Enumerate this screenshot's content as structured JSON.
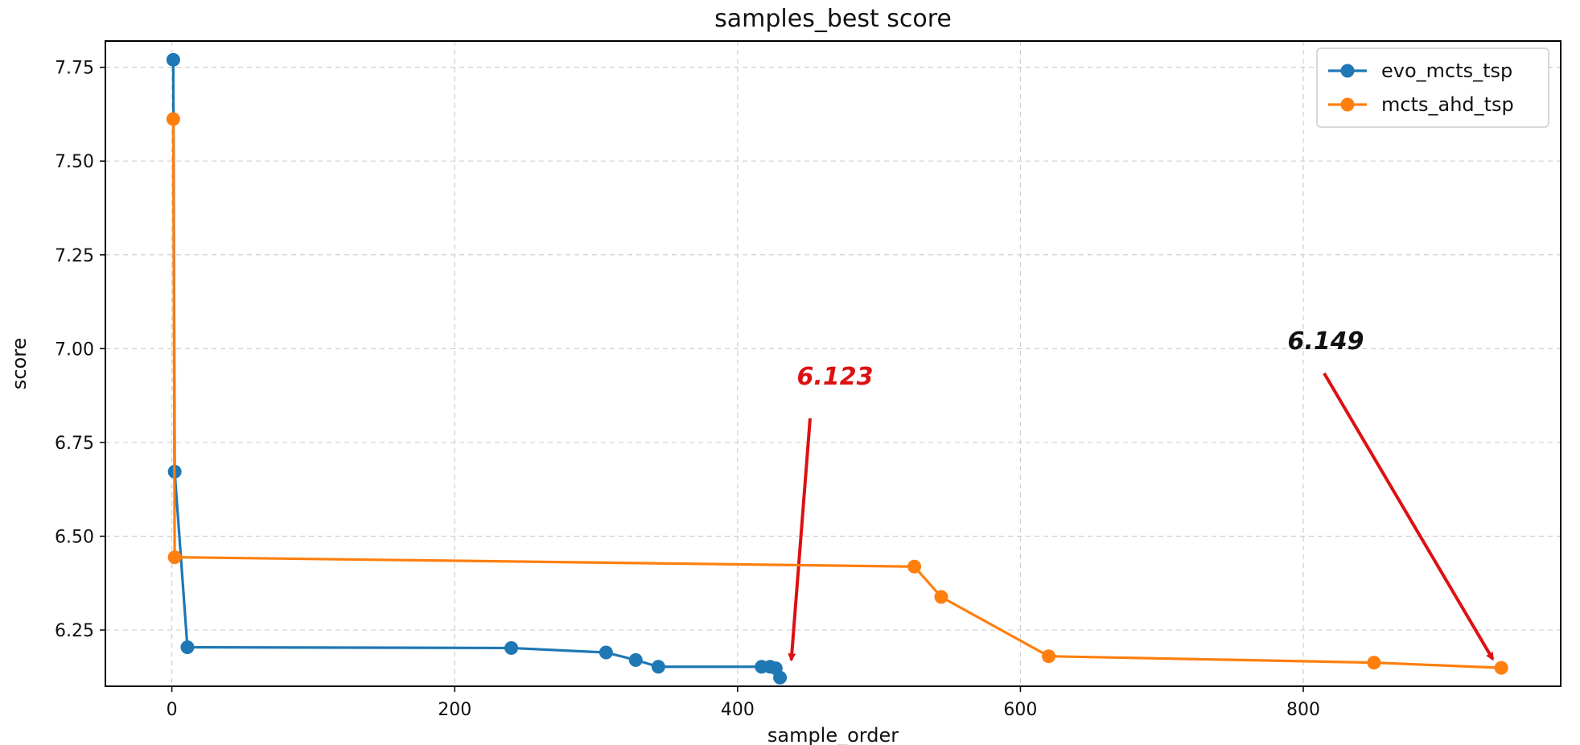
{
  "chart_data": {
    "type": "line",
    "title": "samples_best score",
    "xlabel": "sample_order",
    "ylabel": "score",
    "xlim": [
      -47,
      982
    ],
    "ylim": [
      6.1,
      7.82
    ],
    "xticks": [
      0,
      200,
      400,
      600,
      800
    ],
    "yticks": [
      6.25,
      6.5,
      6.75,
      7.0,
      7.25,
      7.5,
      7.75
    ],
    "xtick_labels": [
      "0",
      "200",
      "400",
      "600",
      "800"
    ],
    "ytick_labels": [
      "6.25",
      "6.50",
      "6.75",
      "7.00",
      "7.25",
      "7.50",
      "7.75"
    ],
    "grid": true,
    "legend_position": "top-right",
    "series": [
      {
        "name": "evo_mcts_tsp",
        "color": "#1f77b4",
        "x": [
          1,
          2,
          11,
          240,
          307,
          328,
          344,
          417,
          423,
          427,
          430
        ],
        "y": [
          7.77,
          6.672,
          6.204,
          6.202,
          6.19,
          6.17,
          6.152,
          6.152,
          6.152,
          6.148,
          6.123
        ]
      },
      {
        "name": "mcts_ahd_tsp",
        "color": "#ff7f0e",
        "x": [
          1,
          2,
          525,
          544,
          620,
          850,
          940
        ],
        "y": [
          7.612,
          6.444,
          6.419,
          6.338,
          6.18,
          6.163,
          6.149
        ]
      }
    ],
    "annotations": [
      {
        "text": "6.123",
        "color": "#dd1111",
        "points_to": {
          "x": 438,
          "y": 6.17
        }
      },
      {
        "text": "6.149",
        "color": "#111111",
        "points_to": {
          "x": 934,
          "y": 6.172
        }
      }
    ],
    "annotation_arrow_color": "#dd1111"
  }
}
